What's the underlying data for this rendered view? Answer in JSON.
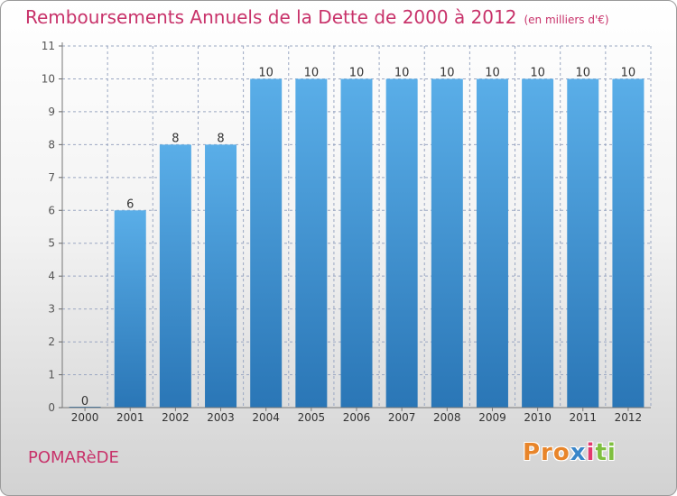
{
  "header": {
    "title": "Remboursements Annuels de la Dette de 2000 à 2012",
    "unit": "(en milliers d'€)"
  },
  "footer": {
    "commune": "POMARèDE",
    "logo": [
      "Pro",
      "x",
      "i",
      "ti"
    ]
  },
  "colors": {
    "title": "#c8326a",
    "bar_top": "#5aaee8",
    "bar_bottom": "#2a76b6",
    "grid": "#9aa7c2"
  },
  "chart_data": {
    "type": "bar",
    "title": "Remboursements Annuels de la Dette de 2000 à 2012",
    "subtitle": "(en milliers d'€)",
    "categories": [
      "2000",
      "2001",
      "2002",
      "2003",
      "2004",
      "2005",
      "2006",
      "2007",
      "2008",
      "2009",
      "2010",
      "2011",
      "2012"
    ],
    "values": [
      0,
      6,
      8,
      8,
      10,
      10,
      10,
      10,
      10,
      10,
      10,
      10,
      10
    ],
    "data_labels": [
      "0",
      "6",
      "8",
      "8",
      "10",
      "10",
      "10",
      "10",
      "10",
      "10",
      "10",
      "10",
      "10"
    ],
    "yticks": [
      0,
      1,
      2,
      3,
      4,
      5,
      6,
      7,
      8,
      9,
      10,
      11
    ],
    "ylim": [
      0,
      11
    ],
    "xlabel": "",
    "ylabel": "",
    "grid": true
  }
}
